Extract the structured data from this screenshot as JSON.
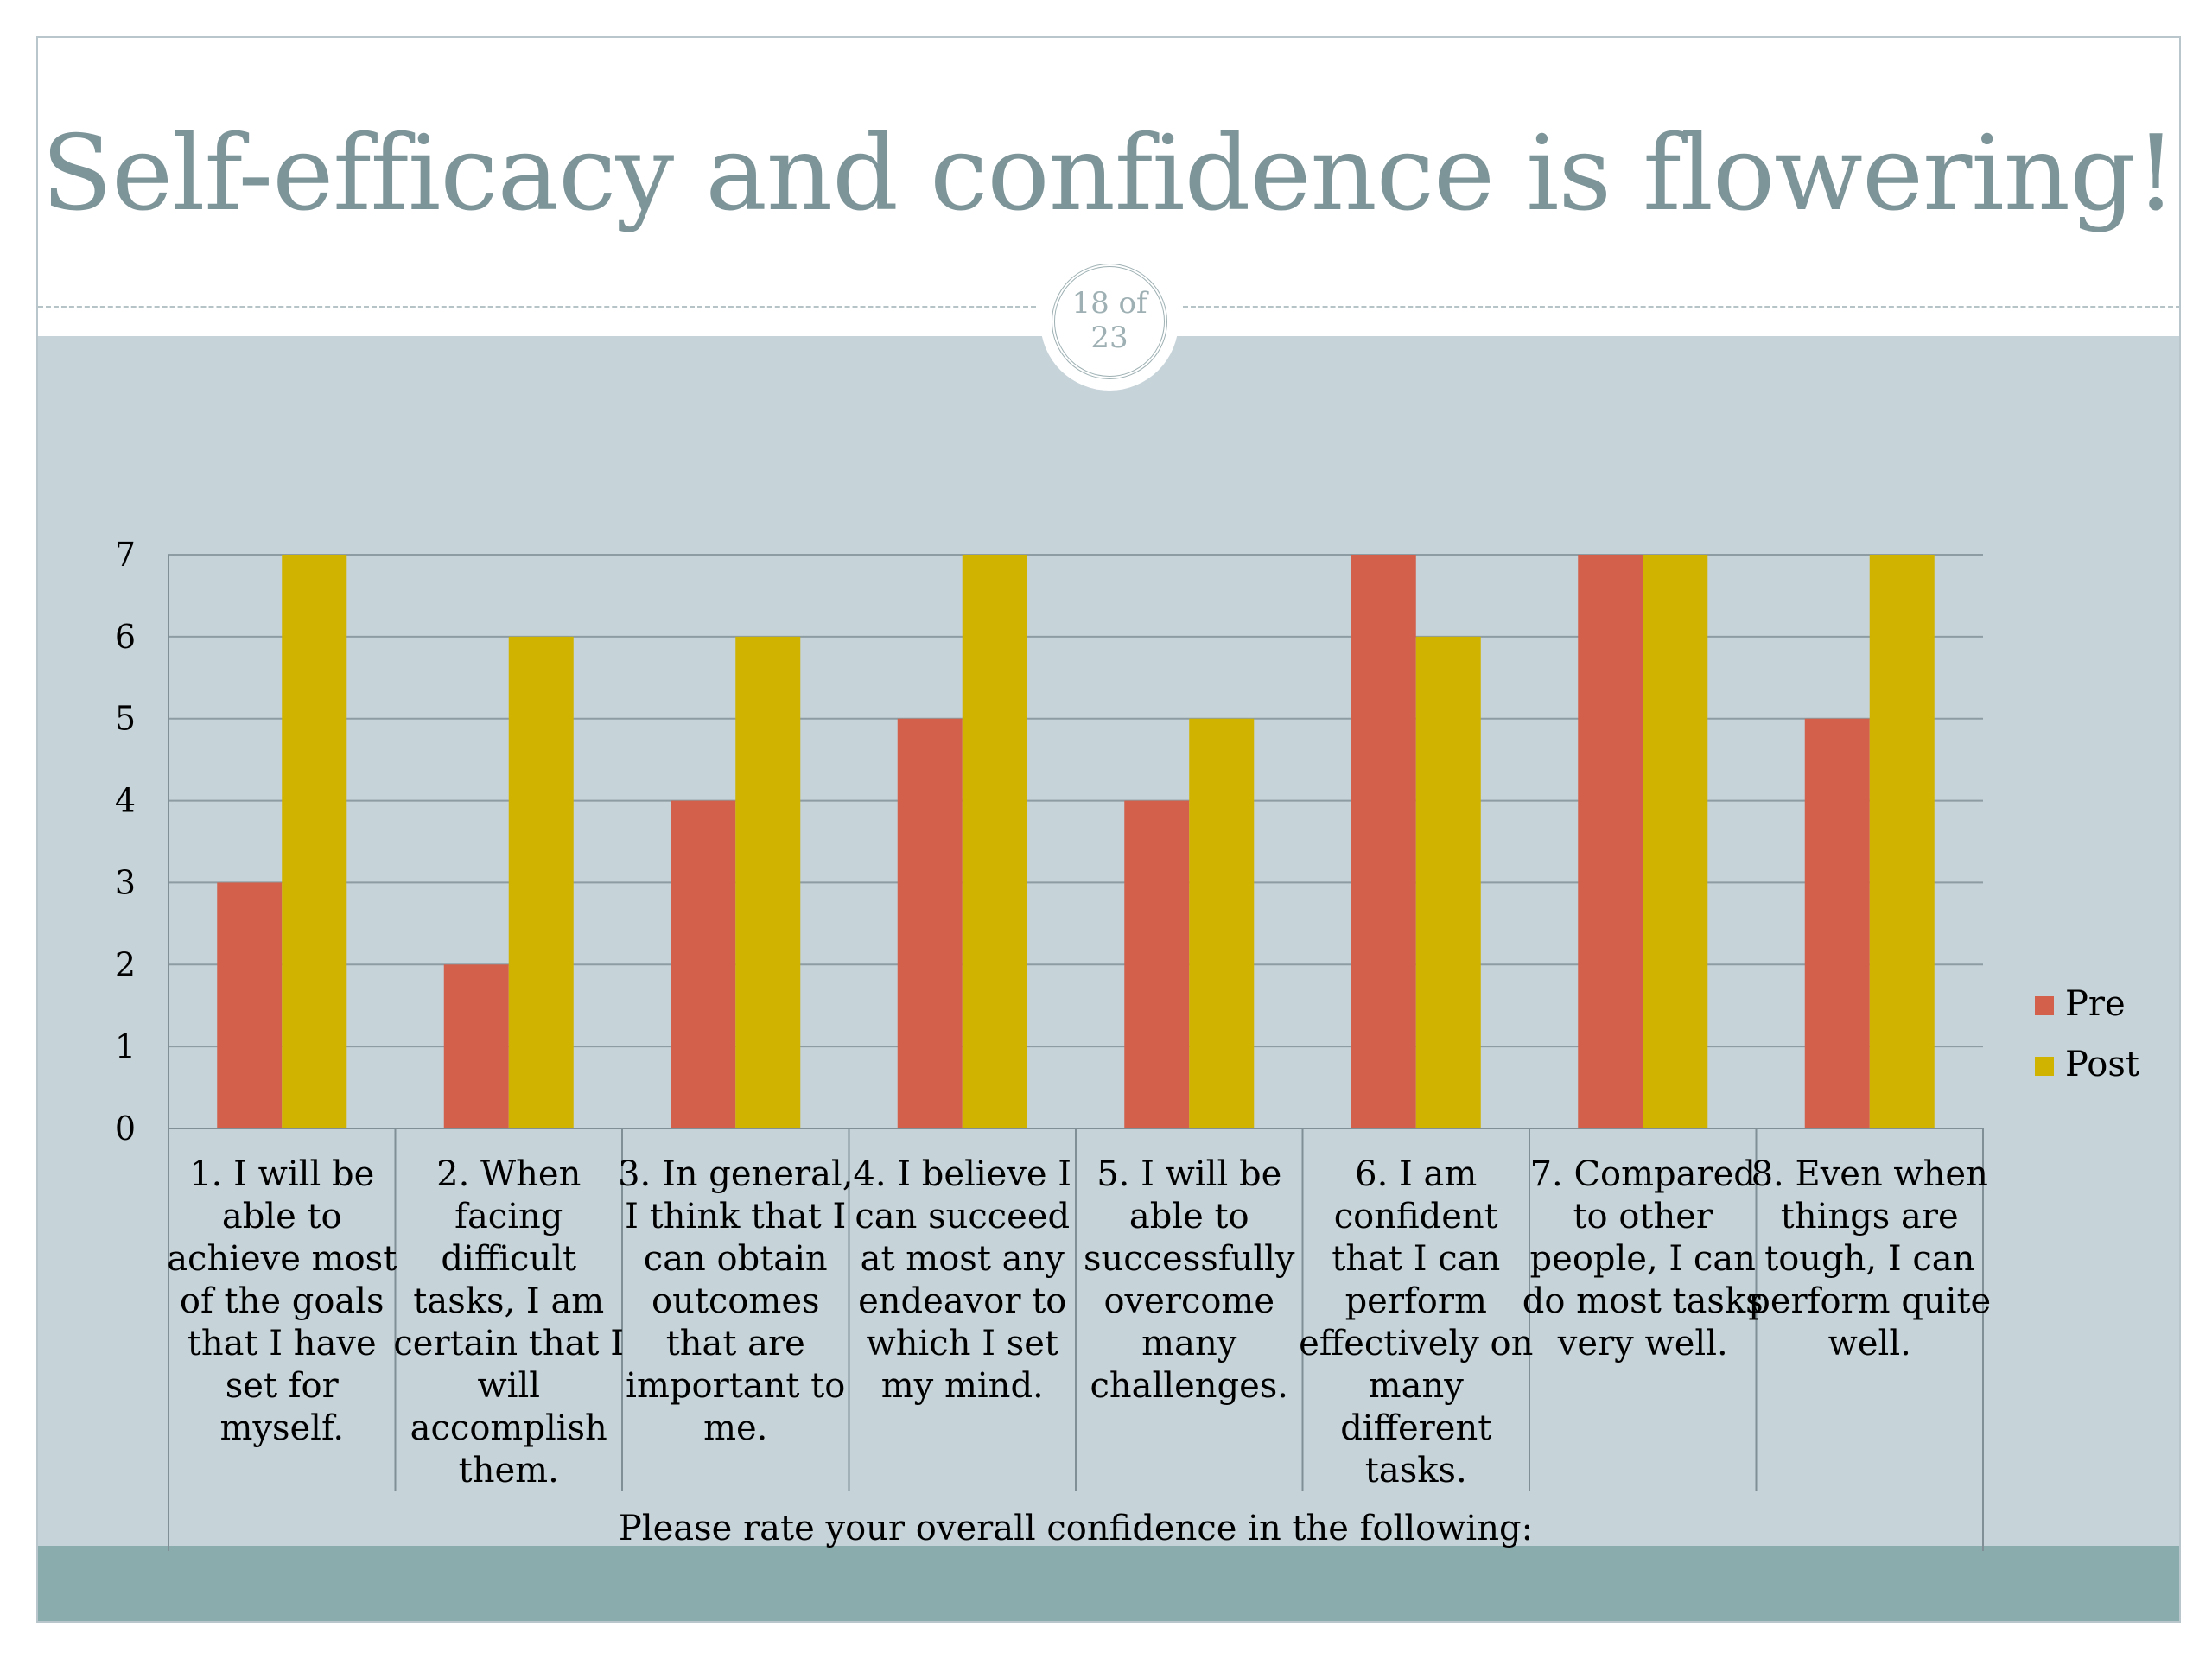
{
  "slide": {
    "title": "Self-efficacy and confidence is flowering!",
    "page_number": "18 of 23",
    "colors": {
      "title": "#7d9498",
      "content_background": "#c6d3d9",
      "footer_band": "#8aacad",
      "pre": "#d2604a",
      "post": "#cfb300"
    }
  },
  "chart_data": {
    "type": "bar",
    "categories": [
      "1. I will be able to achieve most of the goals that I have set for myself.",
      "2. When facing difficult tasks, I am certain that I will accomplish them.",
      "3. In general, I think that I can obtain outcomes that are important to me.",
      "4. I believe I can succeed at most any endeavor to which I set my mind.",
      "5. I will be able to successfully overcome many challenges.",
      "6. I am confident that I can perform effectively on many different tasks.",
      "7. Compared to other people, I can do most tasks very well.",
      "8. Even when things are tough, I can perform quite well."
    ],
    "category_lines": [
      [
        "1. I will be",
        "able to",
        "achieve most",
        "of the goals",
        "that I have",
        "set for",
        "myself."
      ],
      [
        "2. When",
        "facing",
        "difficult",
        "tasks, I am",
        "certain that I",
        "will",
        "accomplish",
        "them."
      ],
      [
        "3. In general,",
        "I think that I",
        "can obtain",
        "outcomes",
        "that are",
        "important to",
        "me."
      ],
      [
        "4. I believe I",
        "can succeed",
        "at most any",
        "endeavor to",
        "which I set",
        "my mind."
      ],
      [
        "5. I will be",
        "able to",
        "successfully",
        "overcome",
        "many",
        "challenges."
      ],
      [
        "6. I am",
        "confident",
        "that I can",
        "perform",
        "effectively on",
        "many",
        "different",
        "tasks."
      ],
      [
        "7. Compared",
        "to other",
        "people, I can",
        "do most tasks",
        "very well."
      ],
      [
        "8. Even when",
        "things are",
        "tough, I can",
        "perform quite",
        "well."
      ]
    ],
    "series": [
      {
        "name": "Pre",
        "color": "#d2604a",
        "values": [
          3,
          2,
          4,
          5,
          4,
          7,
          7,
          5
        ]
      },
      {
        "name": "Post",
        "color": "#cfb300",
        "values": [
          7,
          6,
          6,
          7,
          5,
          6,
          7,
          7
        ]
      }
    ],
    "xlabel": "Please rate your overall confidence in the following:",
    "ylabel": "",
    "ylim": [
      0,
      7
    ],
    "yticks": [
      "0",
      "1",
      "2",
      "3",
      "4",
      "5",
      "6",
      "7"
    ],
    "grid": true,
    "legend": "right"
  }
}
